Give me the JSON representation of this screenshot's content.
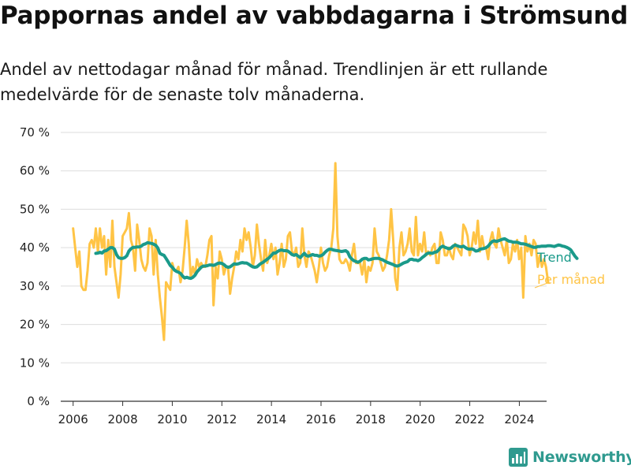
{
  "title": "Pappornas andel av vabbdagarna i Strömsund",
  "subtitle": "Andel av nettodagar månad för månad. Trendlinjen är ett rullande medelvärde för de senaste tolv månaderna.",
  "brand": "Newsworthy",
  "colors": {
    "monthly": "#ffc445",
    "trend": "#1a9a8a",
    "grid": "#dddddd",
    "axis": "#333333",
    "brand": "#2f9a8f"
  },
  "chart_data": {
    "type": "line",
    "title": "Pappornas andel av vabbdagarna i Strömsund",
    "xlabel": "",
    "ylabel": "",
    "xlim": [
      2005.5,
      2025.1
    ],
    "ylim": [
      0,
      70
    ],
    "grid": true,
    "y_ticks": [
      0,
      10,
      20,
      30,
      40,
      50,
      60,
      70
    ],
    "y_tick_labels": [
      "0 %",
      "10 %",
      "20 %",
      "30 %",
      "40 %",
      "50 %",
      "60 %",
      "70 %"
    ],
    "x_ticks": [
      2006,
      2008,
      2010,
      2012,
      2014,
      2016,
      2018,
      2020,
      2022,
      2024
    ],
    "x_tick_labels": [
      "2006",
      "2008",
      "2010",
      "2012",
      "2014",
      "2016",
      "2018",
      "2020",
      "2022",
      "2024"
    ],
    "legend": "right, at line ends",
    "series": [
      {
        "name": "Per månad",
        "x_start": 2006.0,
        "x_step": 0.0833,
        "values": [
          45,
          40,
          35,
          39,
          30,
          29,
          29,
          34,
          41,
          42,
          40,
          45,
          39,
          45,
          40,
          43,
          33,
          42,
          35,
          47,
          35,
          31,
          27,
          33,
          43,
          44,
          45,
          49,
          42,
          40,
          34,
          46,
          42,
          37,
          35,
          34,
          36,
          45,
          43,
          33,
          42,
          33,
          27,
          22,
          16,
          31,
          30,
          29,
          36,
          34,
          34,
          35,
          31,
          34,
          40,
          47,
          41,
          32,
          35,
          33,
          37,
          35,
          36,
          35,
          35,
          38,
          42,
          43,
          25,
          35,
          32,
          39,
          37,
          33,
          35,
          35,
          28,
          32,
          35,
          39,
          37,
          42,
          39,
          45,
          42,
          44,
          40,
          35,
          38,
          46,
          41,
          37,
          34,
          42,
          36,
          38,
          41,
          37,
          40,
          33,
          36,
          41,
          35,
          37,
          43,
          44,
          39,
          38,
          40,
          35,
          36,
          45,
          38,
          35,
          39,
          38,
          36,
          34,
          31,
          35,
          40,
          36,
          34,
          35,
          38,
          40,
          45,
          62,
          43,
          37,
          36,
          36,
          37,
          36,
          34,
          38,
          41,
          36,
          36,
          36,
          33,
          37,
          31,
          35,
          34,
          36,
          45,
          39,
          38,
          36,
          34,
          35,
          38,
          42,
          50,
          42,
          32,
          29,
          40,
          44,
          38,
          39,
          41,
          45,
          39,
          38,
          48,
          38,
          41,
          39,
          44,
          38,
          39,
          38,
          40,
          41,
          36,
          36,
          44,
          42,
          38,
          38,
          40,
          38,
          37,
          41,
          40,
          39,
          38,
          46,
          45,
          43,
          38,
          40,
          44,
          41,
          47,
          39,
          43,
          40,
          40,
          37,
          42,
          44,
          41,
          40,
          45,
          42,
          40,
          38,
          42,
          36,
          37,
          41,
          39,
          42,
          37,
          40,
          27,
          43,
          39,
          41,
          38,
          42,
          41,
          35,
          38,
          35,
          37,
          35,
          31
        ]
      },
      {
        "name": "Trend",
        "x_start": 2006.917,
        "x_step": 0.0833,
        "values": [
          38.5,
          38.6,
          38.8,
          38.6,
          39.1,
          39.2,
          39.6,
          40.0,
          40.0,
          39.6,
          38.2,
          37.4,
          37.2,
          37.2,
          37.4,
          37.9,
          39.1,
          39.7,
          40.1,
          40.1,
          40.2,
          40.2,
          40.4,
          40.8,
          41.0,
          41.3,
          41.2,
          41.1,
          40.9,
          40.6,
          39.9,
          38.5,
          38.2,
          38.0,
          37.2,
          36.3,
          35.4,
          34.9,
          34.2,
          33.8,
          33.6,
          33.3,
          32.6,
          32.1,
          32.3,
          32.1,
          32.0,
          32.3,
          32.8,
          33.7,
          34.3,
          34.9,
          35.2,
          35.2,
          35.3,
          35.5,
          35.5,
          35.4,
          35.6,
          35.9,
          36.0,
          35.9,
          35.6,
          35.1,
          34.9,
          35.0,
          35.4,
          35.8,
          35.7,
          35.8,
          36.0,
          36.1,
          36.0,
          36.0,
          35.7,
          35.3,
          35.0,
          34.9,
          35.0,
          35.5,
          35.9,
          36.2,
          36.6,
          37.0,
          37.4,
          38.0,
          38.6,
          38.6,
          39.0,
          39.3,
          39.4,
          39.2,
          39.2,
          39.1,
          38.7,
          38.2,
          38.0,
          38.2,
          37.8,
          37.4,
          38.0,
          38.5,
          37.9,
          37.8,
          38.0,
          38.2,
          38.0,
          38.0,
          37.8,
          37.9,
          38.2,
          38.8,
          39.3,
          39.6,
          39.6,
          39.4,
          39.3,
          39.2,
          39.1,
          39.0,
          39.1,
          39.2,
          38.8,
          37.6,
          37.0,
          36.6,
          36.4,
          36.2,
          36.5,
          37.0,
          37.2,
          37.2,
          36.8,
          36.9,
          37.1,
          37.2,
          37.2,
          37.2,
          37.0,
          36.8,
          36.5,
          36.2,
          36.0,
          35.8,
          35.6,
          35.3,
          35.2,
          35.4,
          35.7,
          36.0,
          36.2,
          36.4,
          36.9,
          37.0,
          36.8,
          36.8,
          36.6,
          36.9,
          37.4,
          37.8,
          38.3,
          38.6,
          38.6,
          38.5,
          38.8,
          38.9,
          39.4,
          40.1,
          40.4,
          40.1,
          39.9,
          39.7,
          39.9,
          40.4,
          40.7,
          40.5,
          40.3,
          40.2,
          40.4,
          40.0,
          39.7,
          39.6,
          39.7,
          39.5,
          39.1,
          39.2,
          39.6,
          39.7,
          39.8,
          40.0,
          40.4,
          41.1,
          41.6,
          41.8,
          41.6,
          41.8,
          42.0,
          42.2,
          42.3,
          42.0,
          41.7,
          41.6,
          41.4,
          41.4,
          41.4,
          41.2,
          41.0,
          41.0,
          40.9,
          40.7,
          40.5,
          40.3,
          40.1,
          40.1,
          40.3,
          40.3,
          40.4,
          40.4,
          40.4,
          40.5,
          40.5,
          40.4,
          40.3,
          40.5,
          40.7,
          40.6,
          40.4,
          40.3,
          40.1,
          39.8,
          39.4,
          38.6,
          37.8,
          37.2
        ]
      }
    ]
  }
}
